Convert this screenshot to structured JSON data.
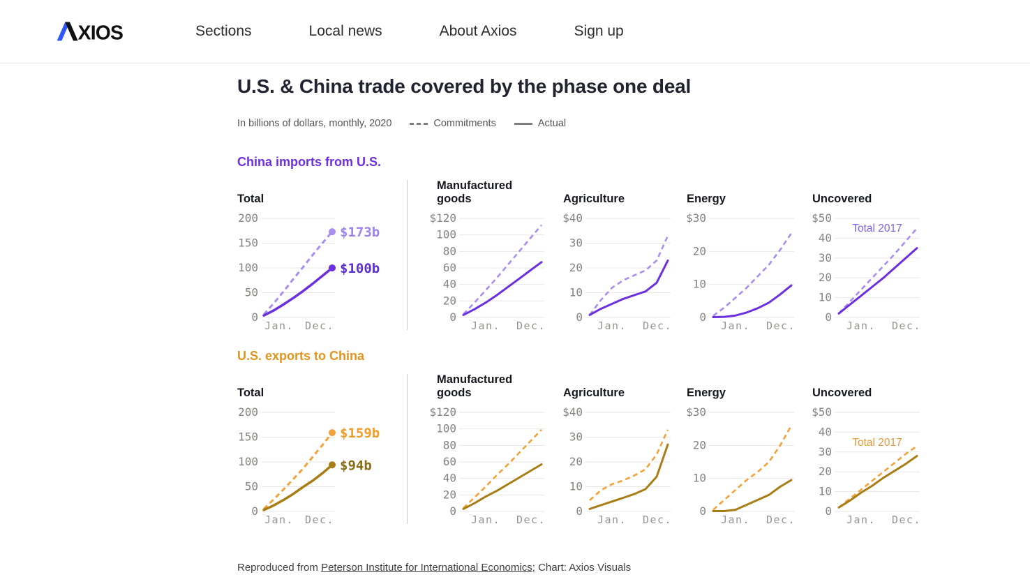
{
  "nav": {
    "brand": "AXIOS",
    "brand_blue": "#3157f8",
    "items": [
      {
        "label": "Sections"
      },
      {
        "label": "Local news"
      },
      {
        "label": "About Axios"
      },
      {
        "label": "Sign up"
      }
    ]
  },
  "chart_data": {
    "type": "line",
    "title": "U.S. & China trade covered by the phase one deal",
    "subtitle": "In billions of dollars, monthly, 2020",
    "legend": [
      {
        "label": "Commitments",
        "style": "dashed"
      },
      {
        "label": "Actual",
        "style": "solid"
      }
    ],
    "x_axis": {
      "labels": [
        "Jan.",
        "Dec."
      ]
    },
    "groups": [
      {
        "name": "China imports from U.S.",
        "colors": {
          "commitments": "#a98df1",
          "actual": "#6c2fe0",
          "heading": "#6d2fe0",
          "annotation": "#7b61ea",
          "label_commitments": "#9e85ee",
          "label_actual": "#5c2ed6"
        },
        "charts": [
          {
            "title": "Total",
            "ymax": 200,
            "tick_labels": [
              "200",
              "150",
              "100",
              "50",
              "0"
            ],
            "tick_values": [
              200,
              150,
              100,
              50,
              0
            ],
            "x_labels": [
              "Jan.",
              "Dec."
            ],
            "commitments": [
              6,
              28,
              52,
              77,
              101,
              126,
              150,
              173
            ],
            "actual": [
              4,
              14,
              26,
              39,
              53,
              68,
              84,
              100
            ],
            "end_labels": {
              "commitments": "$173b",
              "actual": "$100b"
            }
          },
          {
            "title": "Manufactured goods",
            "ymax": 120,
            "tick_labels": [
              "$120",
              "100",
              "80",
              "60",
              "40",
              "20",
              "0"
            ],
            "tick_values": [
              120,
              100,
              80,
              60,
              40,
              20,
              0
            ],
            "x_labels": [
              "Jan.",
              "Dec."
            ],
            "commitments": [
              4,
              18,
              33,
              48,
              64,
              80,
              96,
              112
            ],
            "actual": [
              3,
              10,
              18,
              27,
              37,
              47,
              57,
              67
            ]
          },
          {
            "title": "Agriculture",
            "ymax": 40,
            "tick_labels": [
              "$40",
              "30",
              "20",
              "10",
              "0"
            ],
            "tick_values": [
              40,
              30,
              20,
              10,
              0
            ],
            "x_labels": [
              "Jan.",
              "Dec."
            ],
            "commitments": [
              1,
              7,
              12,
              15,
              17,
              19,
              23,
              33
            ],
            "actual": [
              1,
              3.5,
              5.5,
              7.5,
              9,
              10.5,
              14,
              23
            ]
          },
          {
            "title": "Energy",
            "ymax": 30,
            "tick_labels": [
              "$30",
              "20",
              "10",
              "0"
            ],
            "tick_values": [
              30,
              20,
              10,
              0
            ],
            "x_labels": [
              "Jan.",
              "Dec."
            ],
            "commitments": [
              0.5,
              3,
              6,
              9,
              12.5,
              16,
              20.5,
              25.5
            ],
            "actual": [
              0.1,
              0.2,
              0.6,
              1.5,
              2.8,
              4.5,
              7,
              9.7
            ]
          },
          {
            "title": "Uncovered",
            "ymax": 50,
            "tick_labels": [
              "$50",
              "40",
              "30",
              "20",
              "10",
              "0"
            ],
            "tick_values": [
              50,
              40,
              30,
              20,
              10,
              0
            ],
            "x_labels": [
              "Jan.",
              "Dec."
            ],
            "commitments": [
              2,
              8,
              14,
              20,
              26,
              32,
              38.5,
              45
            ],
            "actual": [
              2,
              6.5,
              11,
              15.5,
              20,
              25,
              30,
              35
            ],
            "annotation": {
              "text": "Total 2017"
            }
          }
        ]
      },
      {
        "name": "U.S. exports to China",
        "colors": {
          "commitments": "#f2a238",
          "actual": "#a87d15",
          "heading": "#e3941c",
          "annotation": "#e8963a",
          "label_commitments": "#f09d2a",
          "label_actual": "#8a6c15"
        },
        "charts": [
          {
            "title": "Total",
            "ymax": 200,
            "tick_labels": [
              "200",
              "150",
              "100",
              "50",
              "0"
            ],
            "tick_values": [
              200,
              150,
              100,
              50,
              0
            ],
            "x_labels": [
              "Jan.",
              "Dec."
            ],
            "commitments": [
              5,
              24,
              44,
              65,
              86,
              110,
              134,
              159
            ],
            "actual": [
              3,
              12,
              23,
              35,
              49,
              62,
              77,
              94
            ],
            "end_labels": {
              "commitments": "$159b",
              "actual": "$94b"
            }
          },
          {
            "title": "Manufactured goods",
            "ymax": 120,
            "tick_labels": [
              "$120",
              "100",
              "80",
              "60",
              "40",
              "20",
              "0"
            ],
            "tick_values": [
              120,
              100,
              80,
              60,
              40,
              20,
              0
            ],
            "x_labels": [
              "Jan.",
              "Dec."
            ],
            "commitments": [
              4,
              17,
              30,
              44,
              57,
              71,
              85,
              99
            ],
            "actual": [
              3,
              10,
              18,
              25,
              33,
              41,
              49,
              57
            ]
          },
          {
            "title": "Agriculture",
            "ymax": 40,
            "tick_labels": [
              "$40",
              "30",
              "20",
              "10",
              "0"
            ],
            "tick_values": [
              40,
              30,
              20,
              10,
              0
            ],
            "x_labels": [
              "Jan.",
              "Dec."
            ],
            "commitments": [
              4.5,
              8.5,
              11,
              12.5,
              14.5,
              17,
              23,
              33
            ],
            "actual": [
              1,
              2.5,
              4,
              5.5,
              7,
              9,
              14,
              27
            ]
          },
          {
            "title": "Energy",
            "ymax": 30,
            "tick_labels": [
              "$30",
              "20",
              "10",
              "0"
            ],
            "tick_values": [
              30,
              20,
              10,
              0
            ],
            "x_labels": [
              "Jan.",
              "Dec."
            ],
            "commitments": [
              0.5,
              3.5,
              6.5,
              9.5,
              12,
              15,
              20,
              26
            ],
            "actual": [
              0.1,
              0.1,
              0.5,
              2,
              3.5,
              5,
              7.5,
              9.5
            ]
          },
          {
            "title": "Uncovered",
            "ymax": 50,
            "tick_labels": [
              "$50",
              "40",
              "30",
              "20",
              "10",
              "0"
            ],
            "tick_values": [
              50,
              40,
              30,
              20,
              10,
              0
            ],
            "x_labels": [
              "Jan.",
              "Dec."
            ],
            "commitments": [
              2,
              6.5,
              11,
              15.5,
              20,
              24.5,
              29,
              33
            ],
            "actual": [
              2,
              5.5,
              9.5,
              13,
              17,
              20.5,
              24,
              28
            ],
            "annotation": {
              "text": "Total 2017"
            }
          }
        ]
      }
    ]
  },
  "footer": {
    "prefix": "Reproduced from ",
    "link_text": "Peterson Institute for International Economics",
    "suffix": "; Chart: Axios Visuals"
  }
}
